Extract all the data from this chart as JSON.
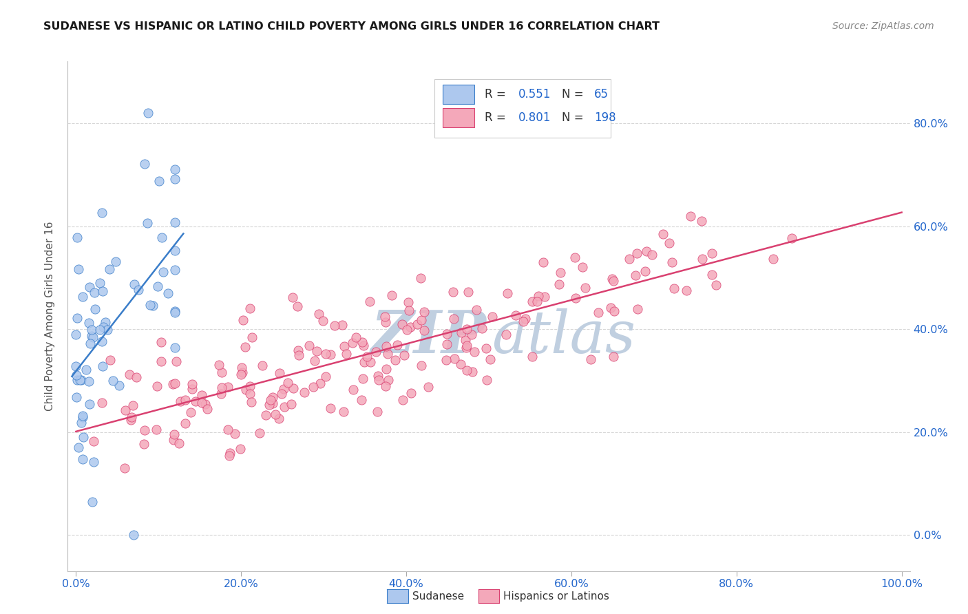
{
  "title": "SUDANESE VS HISPANIC OR LATINO CHILD POVERTY AMONG GIRLS UNDER 16 CORRELATION CHART",
  "source": "Source: ZipAtlas.com",
  "ylabel": "Child Poverty Among Girls Under 16",
  "r_sudanese": 0.551,
  "n_sudanese": 65,
  "r_hispanic": 0.801,
  "n_hispanic": 198,
  "color_sudanese": "#adc8ee",
  "color_hispanic": "#f4a8ba",
  "line_color_sudanese": "#3a7dc9",
  "line_color_hispanic": "#d94070",
  "watermark_zip_color": "#c0cfe0",
  "watermark_atlas_color": "#c0cfe0",
  "title_color": "#1a1a1a",
  "legend_text_color": "#333333",
  "legend_value_color": "#2266cc",
  "axis_tick_color": "#2266cc",
  "background_color": "#ffffff",
  "grid_color": "#cccccc",
  "xlim": [
    -0.01,
    1.01
  ],
  "ylim": [
    -0.07,
    0.92
  ],
  "xticks": [
    0.0,
    0.2,
    0.4,
    0.6,
    0.8,
    1.0
  ],
  "xtick_labels": [
    "0.0%",
    "20.0%",
    "40.0%",
    "60.0%",
    "80.0%",
    "100.0%"
  ],
  "yticks_right": [
    0.0,
    0.2,
    0.4,
    0.6,
    0.8
  ],
  "ytick_right_labels": [
    "0.0%",
    "20.0%",
    "40.0%",
    "60.0%",
    "80.0%"
  ]
}
